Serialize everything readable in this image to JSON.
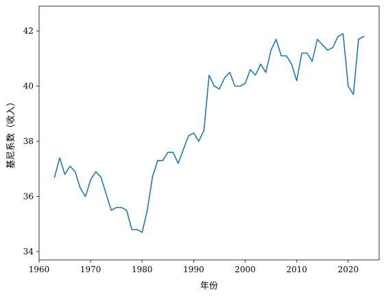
{
  "chart_data": {
    "type": "line",
    "title": "",
    "xlabel": "年份",
    "ylabel": "基尼系数（收入）",
    "xlim": [
      1960,
      2026
    ],
    "ylim": [
      33.7,
      42.9
    ],
    "xticks": [
      1960,
      1970,
      1980,
      1990,
      2000,
      2010,
      2020
    ],
    "yticks": [
      34,
      36,
      38,
      40,
      42
    ],
    "grid": false,
    "legend": "none",
    "series": [
      {
        "color": "#1f77b4",
        "x": [
          1963,
          1964,
          1965,
          1966,
          1967,
          1968,
          1969,
          1970,
          1971,
          1972,
          1973,
          1974,
          1975,
          1976,
          1977,
          1978,
          1979,
          1980,
          1981,
          1982,
          1983,
          1984,
          1985,
          1986,
          1987,
          1988,
          1989,
          1990,
          1991,
          1992,
          1993,
          1994,
          1995,
          1996,
          1997,
          1998,
          1999,
          2000,
          2001,
          2002,
          2003,
          2004,
          2005,
          2006,
          2007,
          2008,
          2009,
          2010,
          2011,
          2012,
          2013,
          2014,
          2015,
          2016,
          2017,
          2018,
          2019,
          2020,
          2021,
          2022,
          2023
        ],
        "y": [
          36.7,
          37.4,
          36.8,
          37.1,
          36.9,
          36.3,
          36.0,
          36.6,
          36.9,
          36.7,
          36.1,
          35.5,
          35.6,
          35.6,
          35.5,
          34.8,
          34.8,
          34.7,
          35.5,
          36.7,
          37.3,
          37.3,
          37.6,
          37.6,
          37.2,
          37.7,
          38.2,
          38.3,
          38.0,
          38.4,
          40.4,
          40.0,
          39.9,
          40.3,
          40.5,
          40.0,
          40.0,
          40.1,
          40.6,
          40.4,
          40.8,
          40.5,
          41.3,
          41.7,
          41.1,
          41.1,
          40.8,
          40.2,
          41.2,
          41.2,
          40.9,
          41.7,
          41.5,
          41.3,
          41.4,
          41.8,
          41.9,
          40.0,
          39.7,
          41.7,
          41.8
        ]
      }
    ]
  }
}
